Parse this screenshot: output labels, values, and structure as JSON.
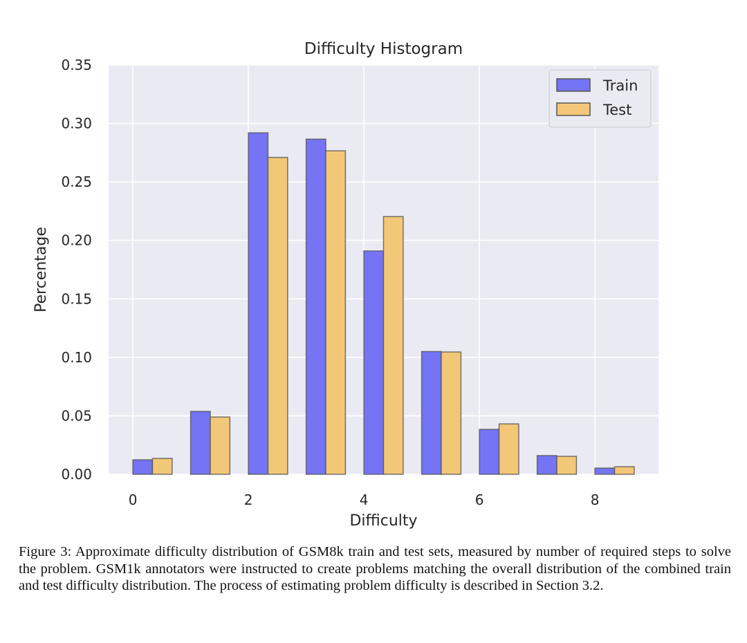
{
  "chart_data": {
    "type": "bar",
    "title": "Difficulty Histogram",
    "xlabel": "Difficulty",
    "ylabel": "Percentage",
    "categories": [
      0,
      1,
      2,
      3,
      4,
      5,
      6,
      7,
      8
    ],
    "series": [
      {
        "name": "Train",
        "color": "#7474f4",
        "values": [
          0.0124,
          0.0538,
          0.292,
          0.2866,
          0.191,
          0.105,
          0.0384,
          0.016,
          0.0053
        ]
      },
      {
        "name": "Test",
        "color": "#f2c777",
        "values": [
          0.0136,
          0.049,
          0.271,
          0.2766,
          0.2204,
          0.1046,
          0.0431,
          0.0154,
          0.0065
        ]
      }
    ],
    "xticks": [
      "0",
      "2",
      "4",
      "6",
      "8"
    ],
    "yticks": [
      "0.00",
      "0.05",
      "0.10",
      "0.15",
      "0.20",
      "0.25",
      "0.30",
      "0.35"
    ],
    "xlim": [
      -0.42,
      9.1
    ],
    "ylim": [
      0,
      0.35
    ],
    "grid": true,
    "legend_position": "top-right",
    "background": "#eaeaf2"
  },
  "caption": "Figure 3: Approximate difficulty distribution of GSM8k train and test sets, measured by number of required steps to solve the problem. GSM1k annotators were instructed to create problems matching the overall distribution of the combined train and test difficulty distribution. The process of estimating problem difficulty is described in Section 3.2."
}
